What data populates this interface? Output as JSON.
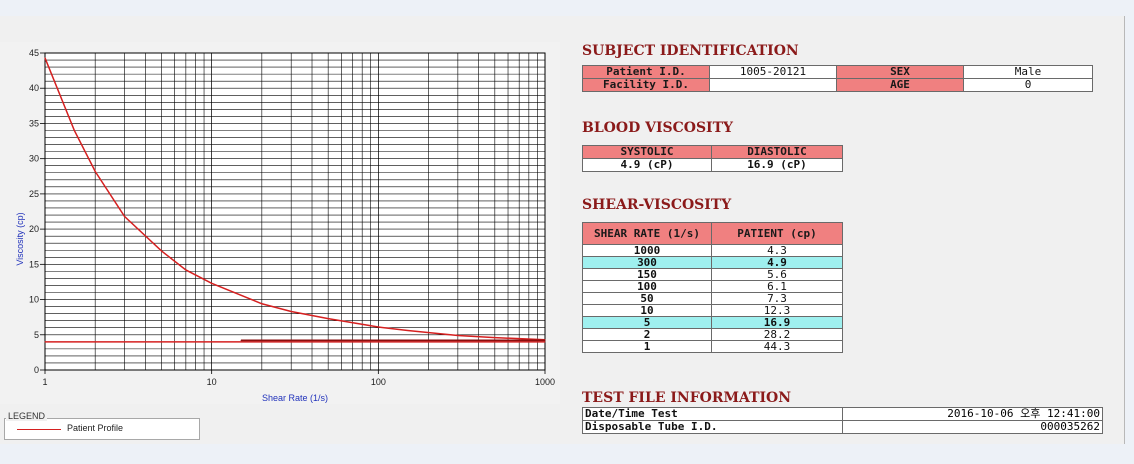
{
  "subject": {
    "heading": "SUBJECT IDENTIFICATION",
    "patient_id_label": "Patient I.D.",
    "patient_id": "1005-20121",
    "sex_label": "SEX",
    "sex": "Male",
    "facility_id_label": "Facility I.D.",
    "facility_id": "",
    "age_label": "AGE",
    "age": "0"
  },
  "blood_viscosity": {
    "heading": "BLOOD VISCOSITY",
    "systolic_label": "SYSTOLIC",
    "systolic": "4.9 (cP)",
    "diastolic_label": "DIASTOLIC",
    "diastolic": "16.9 (cP)"
  },
  "shear_viscosity": {
    "heading": "SHEAR-VISCOSITY",
    "col_rate": "SHEAR RATE (1/s)",
    "col_patient": "PATIENT (cp)",
    "rows": [
      {
        "rate": "1000",
        "value": "4.3",
        "highlight": false
      },
      {
        "rate": "300",
        "value": "4.9",
        "highlight": true
      },
      {
        "rate": "150",
        "value": "5.6",
        "highlight": false
      },
      {
        "rate": "100",
        "value": "6.1",
        "highlight": false
      },
      {
        "rate": "50",
        "value": "7.3",
        "highlight": false
      },
      {
        "rate": "10",
        "value": "12.3",
        "highlight": false
      },
      {
        "rate": "5",
        "value": "16.9",
        "highlight": true
      },
      {
        "rate": "2",
        "value": "28.2",
        "highlight": false
      },
      {
        "rate": "1",
        "value": "44.3",
        "highlight": false
      }
    ]
  },
  "test_file": {
    "heading": "TEST FILE INFORMATION",
    "datetime_label": "Date/Time Test",
    "datetime": "2016-10-06 오후 12:41:00",
    "tube_label": "Disposable Tube I.D.",
    "tube_id": "000035262"
  },
  "legend": {
    "title": "LEGEND",
    "entry": "Patient Profile"
  },
  "colors": {
    "profile": "#d52020",
    "reference": "#8a0f0f",
    "heading": "#8b1a1a",
    "header_cell": "#f08080",
    "highlight_row": "#9ff0ef"
  },
  "chart_data": {
    "type": "line",
    "xlabel": "Shear Rate (1/s)",
    "ylabel": "Viscosity (cp)",
    "x_scale": "log",
    "xlim": [
      1,
      1000
    ],
    "ylim": [
      0,
      45
    ],
    "x_ticks": [
      "1",
      "10",
      "100",
      "1000"
    ],
    "y_ticks": [
      "0",
      "5",
      "10",
      "15",
      "20",
      "25",
      "30",
      "35",
      "40",
      "45"
    ],
    "grid": true,
    "series": [
      {
        "name": "Patient Profile",
        "color": "#d52020",
        "x": [
          1,
          1.5,
          2,
          3,
          5,
          7,
          10,
          20,
          30,
          50,
          100,
          150,
          300,
          500,
          1000
        ],
        "y": [
          44.3,
          34.0,
          28.2,
          21.8,
          16.9,
          14.2,
          12.3,
          9.4,
          8.3,
          7.3,
          6.1,
          5.6,
          4.9,
          4.6,
          4.3
        ]
      },
      {
        "color": "#d52020",
        "x": [
          1,
          1000
        ],
        "y": [
          4.0,
          4.0
        ]
      },
      {
        "color": "#8a0f0f",
        "x": [
          15,
          1000
        ],
        "y": [
          4.2,
          4.2
        ]
      }
    ]
  }
}
